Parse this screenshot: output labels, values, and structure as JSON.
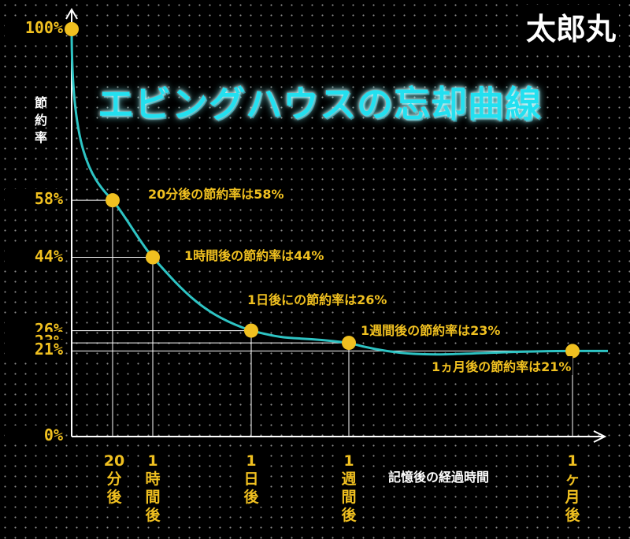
{
  "brand": "太郎丸",
  "chart_data": {
    "type": "line",
    "title": "エビングハウスの忘却曲線",
    "ylabel": "節約率",
    "xlabel": "記憶後の経過時間",
    "y_ticks": [
      {
        "label": "100%",
        "value": 100
      },
      {
        "label": "58%",
        "value": 58
      },
      {
        "label": "44%",
        "value": 44
      },
      {
        "label": "26%",
        "value": 26
      },
      {
        "label": "23%",
        "value": 23
      },
      {
        "label": "21%",
        "value": 21
      },
      {
        "label": "0%",
        "value": 0
      }
    ],
    "x_ticks": [
      {
        "label": "20分後",
        "top": "20",
        "bottom": "分後"
      },
      {
        "label": "1時間後",
        "top": "1",
        "bottom": "時間後"
      },
      {
        "label": "1日後",
        "top": "1",
        "bottom": "日後"
      },
      {
        "label": "1週間後",
        "top": "1",
        "bottom": "週間後"
      },
      {
        "label": "1ヶ月後",
        "top": "1",
        "bottom": "ヶ月後"
      }
    ],
    "points": [
      {
        "x": "0",
        "y": 100
      },
      {
        "x": "20分後",
        "y": 58,
        "annotation": "20分後の節約率は58%"
      },
      {
        "x": "1時間後",
        "y": 44,
        "annotation": "1時間後の節約率は44%"
      },
      {
        "x": "1日後",
        "y": 26,
        "annotation": "1日後にの節約率は26%"
      },
      {
        "x": "1週間後",
        "y": 23,
        "annotation": "1週間後の節約率は23%"
      },
      {
        "x": "1ヶ月後",
        "y": 21,
        "annotation": "1ヵ月後の節約率は21%"
      }
    ],
    "ylim": [
      0,
      100
    ],
    "grid": false,
    "colors": {
      "curve": "#2ec4c4",
      "marker": "#f0c020",
      "axis": "#ffffff",
      "guide": "#ffffff",
      "labels": "#f0c020"
    }
  }
}
